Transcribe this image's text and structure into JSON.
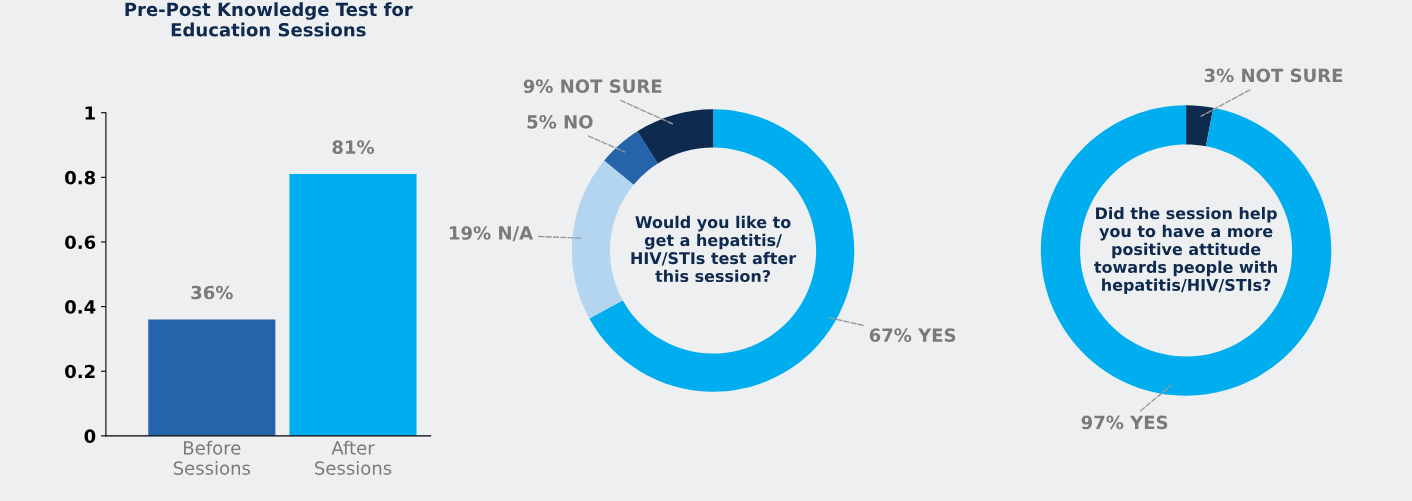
{
  "chart_data": [
    {
      "type": "bar",
      "title": "Pre-Post Knowledge Test for\nEducation Sessions",
      "categories": [
        "Before\nSessions",
        "After\nSessions"
      ],
      "values": [
        0.36,
        0.81
      ],
      "colors": [
        "#2364aa",
        "#00aeef"
      ],
      "value_labels": [
        "36%",
        "81%"
      ],
      "ylim": [
        0,
        1
      ],
      "yticks": [
        0,
        0.2,
        0.4,
        0.6,
        0.8,
        1
      ],
      "grid": false,
      "legend": false
    },
    {
      "type": "donut",
      "title": "Would you like to\nget a hepatitis/\nHIV/STIs test after\nthis session?",
      "categories": [
        "YES",
        "N/A",
        "NO",
        "NOT SURE"
      ],
      "values": [
        67,
        19,
        5,
        9
      ],
      "value_labels": [
        "67%",
        "19%",
        "5%",
        "9%"
      ],
      "colors": [
        "#00aeef",
        "#b3d5f0",
        "#2364aa",
        "#0f2a4f"
      ],
      "legend": false
    },
    {
      "type": "donut",
      "title": "Did the session help\nyou to have a more\npositive attitude\ntowards people with\nhepatitis/HIV/STIs?",
      "categories": [
        "NOT SURE",
        "YES"
      ],
      "values": [
        3,
        97
      ],
      "value_labels": [
        "3%",
        "97%"
      ],
      "colors": [
        "#0f2a4f",
        "#00aeef"
      ],
      "legend": false
    }
  ]
}
